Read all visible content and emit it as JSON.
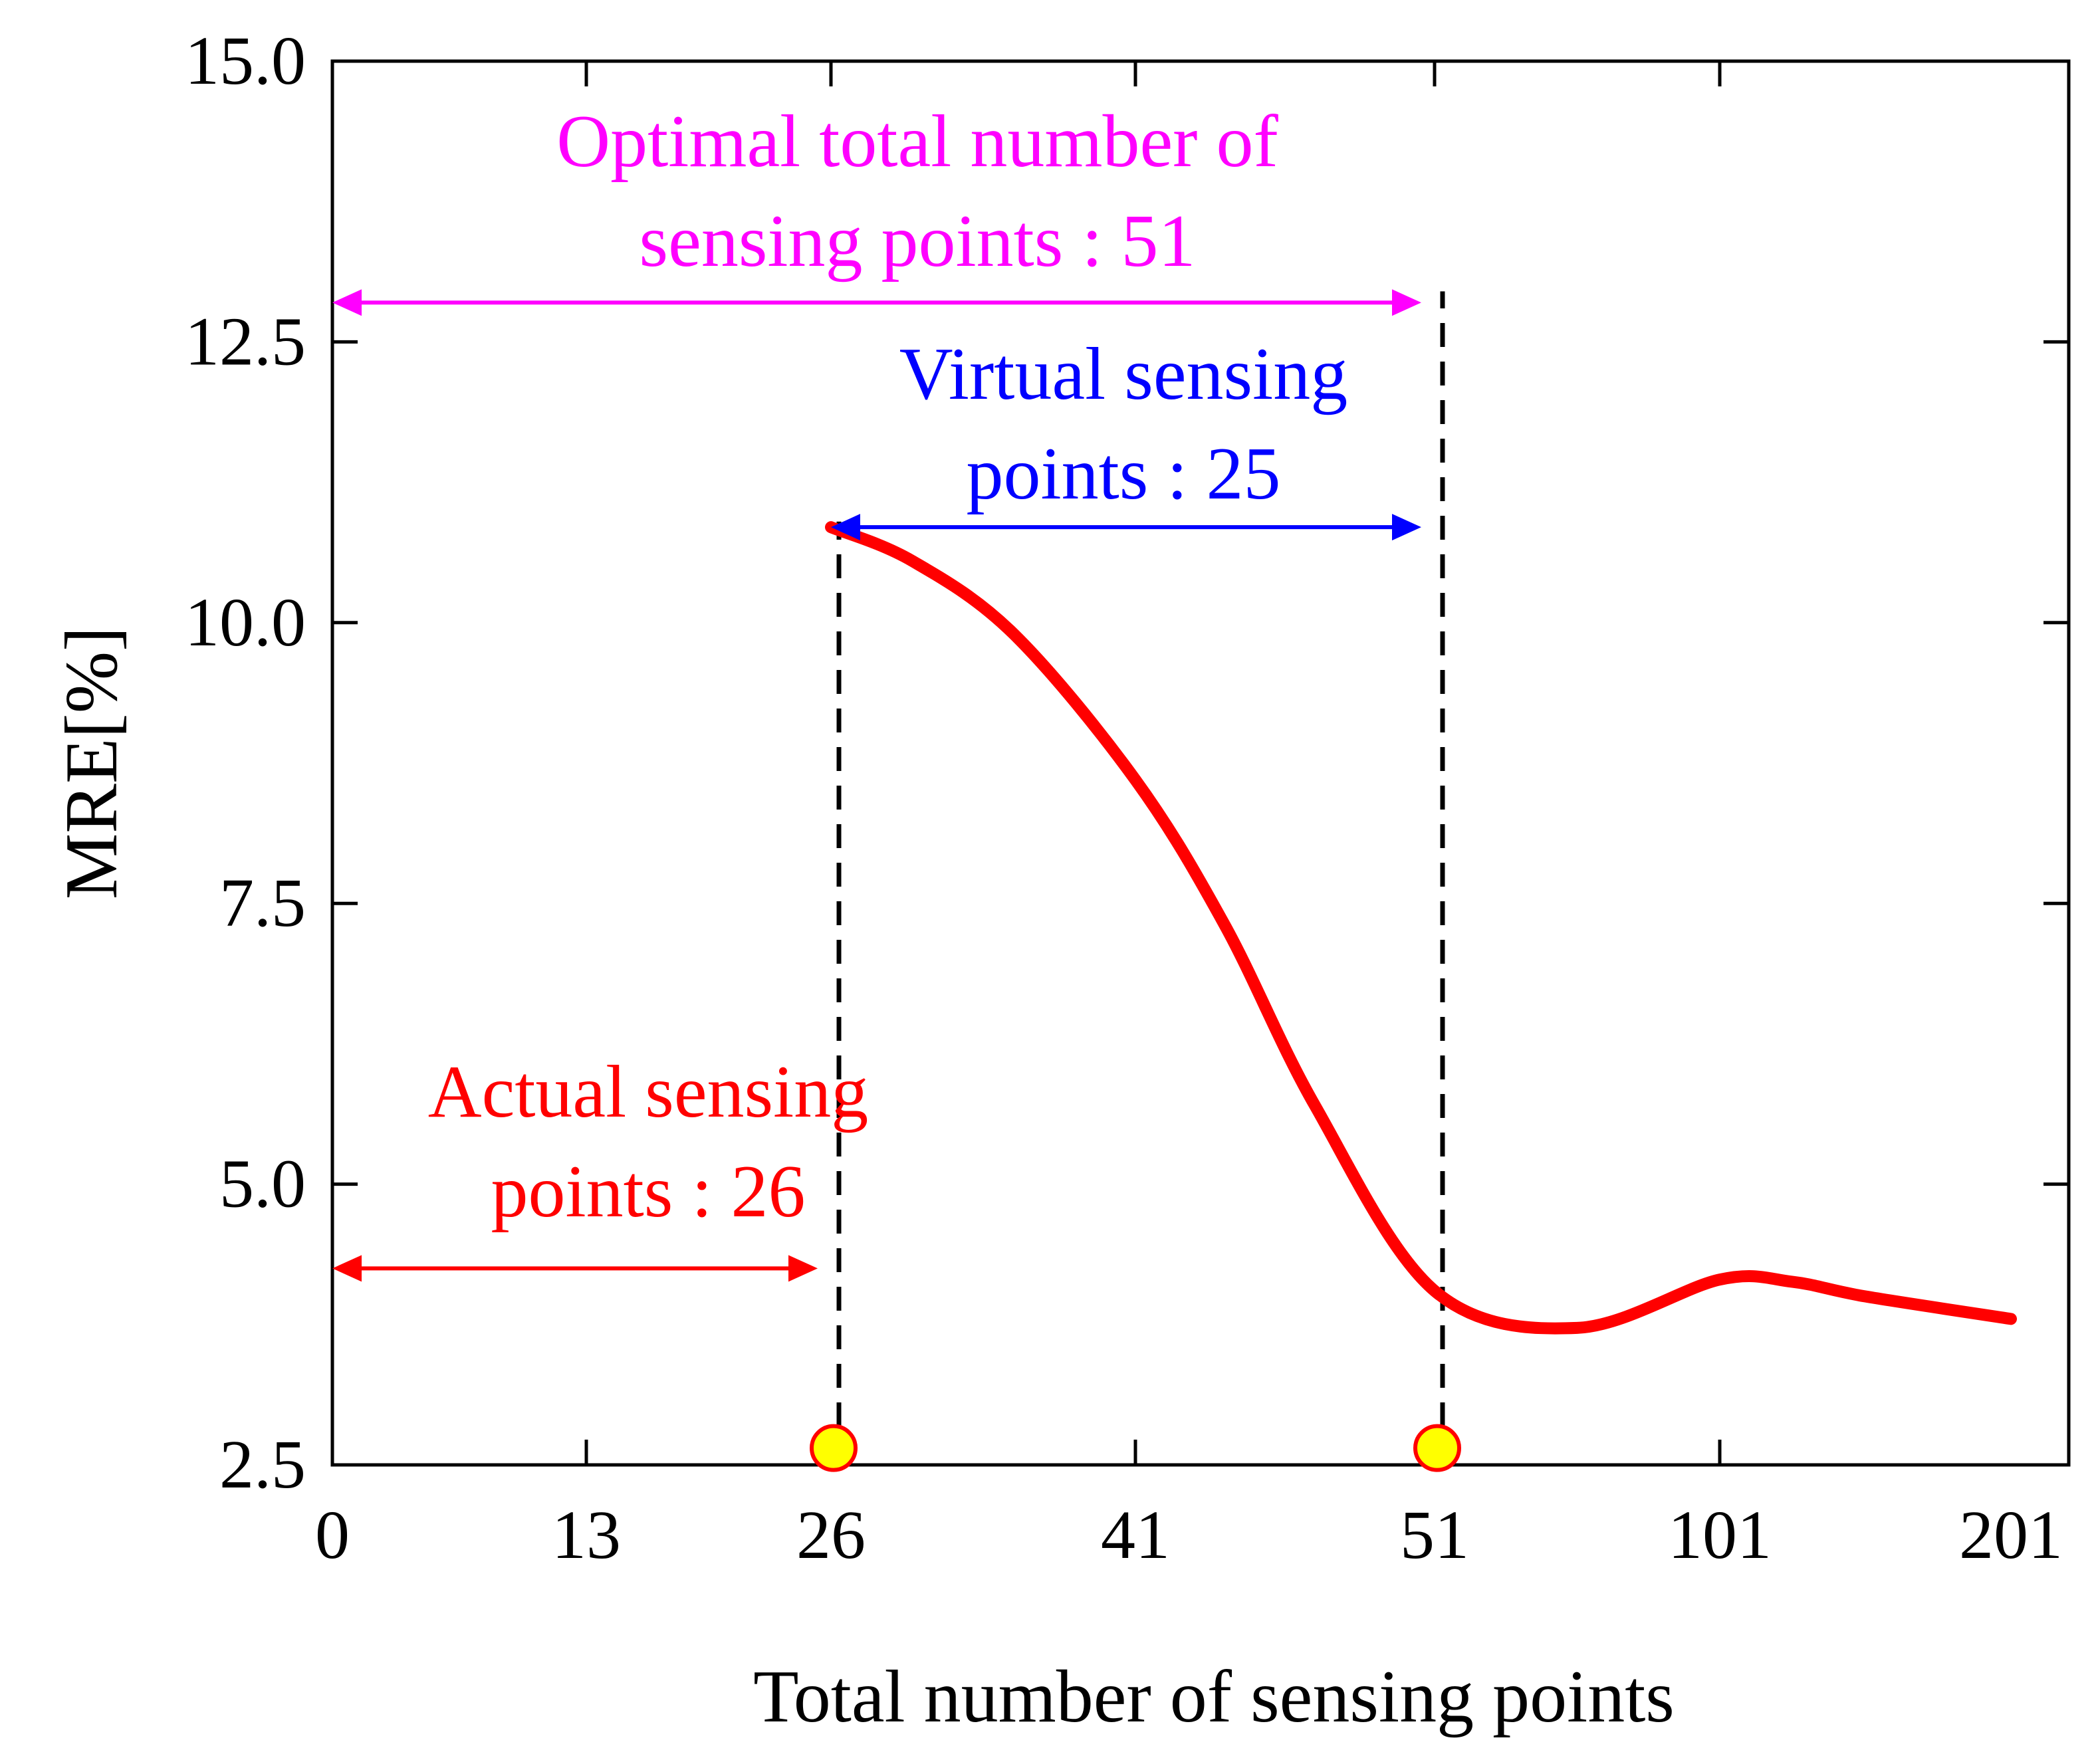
{
  "chart_data": {
    "type": "line",
    "xlabel": "Total number of sensing points",
    "ylabel": "MRE[%]",
    "x_tick_labels": [
      "0",
      "13",
      "26",
      "41",
      "51",
      "101",
      "201"
    ],
    "y_tick_labels": [
      "2.5",
      "5.0",
      "7.5",
      "10.0",
      "12.5",
      "15.0"
    ],
    "ylim": [
      2.5,
      15.0
    ],
    "x_scale": "categorical (non-uniform spacing)",
    "grid": false,
    "series": [
      {
        "color": "#ff0000",
        "points": [
          {
            "x": 26,
            "y": 10.85
          },
          {
            "x": 30,
            "y": 10.55
          },
          {
            "x": 35,
            "y": 9.9
          },
          {
            "x": 41,
            "y": 8.6
          },
          {
            "x": 44,
            "y": 7.3
          },
          {
            "x": 47,
            "y": 5.7
          },
          {
            "x": 51,
            "y": 4.05
          },
          {
            "x": 76,
            "y": 3.72
          },
          {
            "x": 101,
            "y": 4.15
          },
          {
            "x": 126,
            "y": 4.13
          },
          {
            "x": 151,
            "y": 4.0
          },
          {
            "x": 201,
            "y": 3.8
          }
        ]
      }
    ],
    "markers": [
      {
        "x": 26,
        "y": 2.65,
        "color": "#ffff00",
        "edge": "#ff0000"
      },
      {
        "x": 51,
        "y": 2.65,
        "color": "#ffff00",
        "edge": "#ff0000"
      }
    ],
    "vlines": [
      {
        "x": 26,
        "y_top": 10.9,
        "style": "dashed",
        "color": "#000000"
      },
      {
        "x": 51,
        "y_top": 12.95,
        "style": "dashed",
        "color": "#000000"
      }
    ],
    "annotations": [
      {
        "lines": [
          "Optimal total number of",
          "sensing points : 51"
        ],
        "color": "#ff00ff",
        "arrow_from": 0,
        "arrow_to": 51,
        "arrow_y": 12.85
      },
      {
        "lines": [
          "Virtual sensing",
          "points : 25"
        ],
        "color": "#0000ff",
        "arrow_from": 26,
        "arrow_to": 51,
        "arrow_y": 10.85
      },
      {
        "lines": [
          "Actual sensing",
          "points : 26"
        ],
        "color": "#ff0000",
        "arrow_from": 0,
        "arrow_to": 26,
        "arrow_y": 4.25
      }
    ]
  }
}
